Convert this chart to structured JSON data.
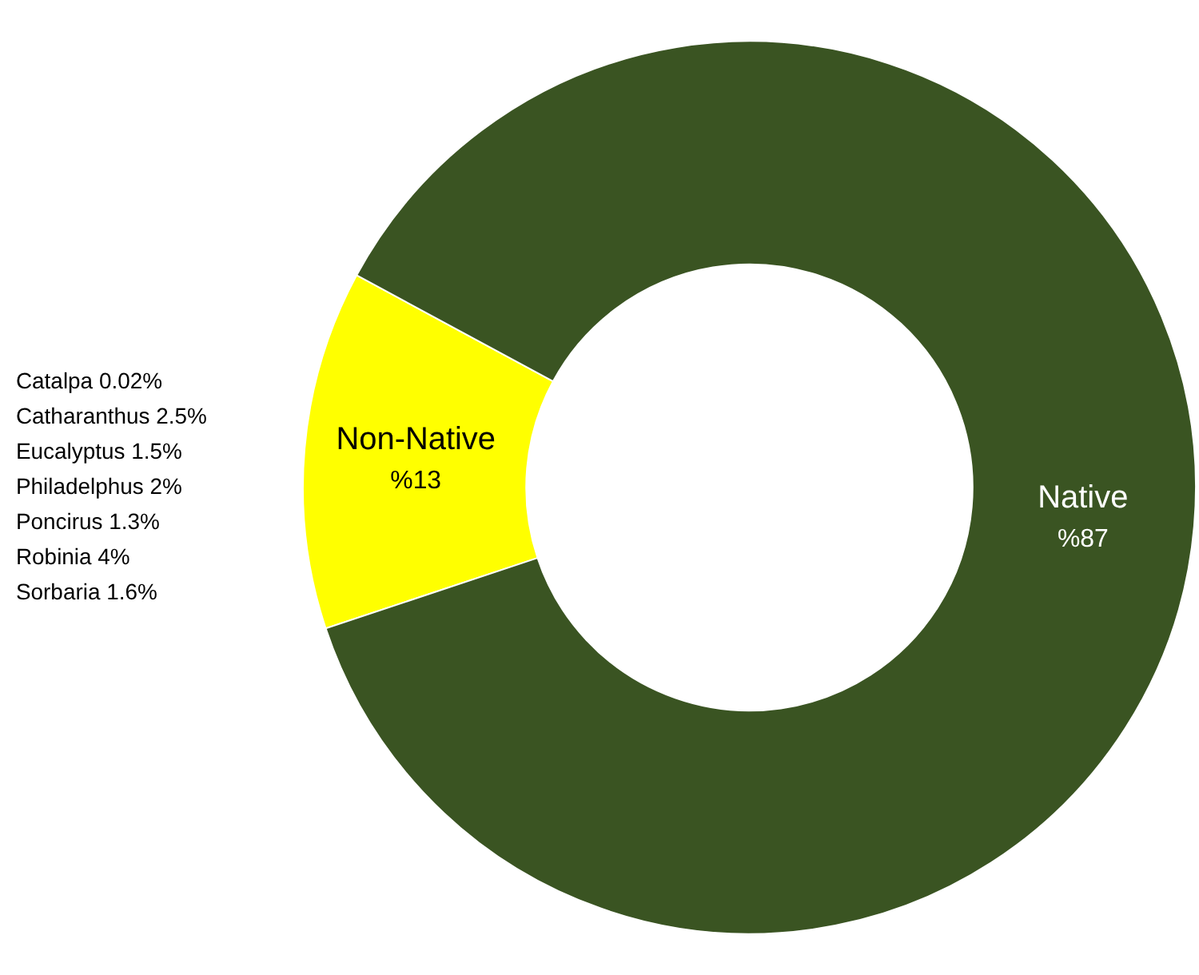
{
  "chart_data": {
    "type": "donut",
    "categories": [
      "Non-Native",
      "Native"
    ],
    "values": [
      13,
      87
    ],
    "colors": [
      "#ffff00",
      "#3a5422"
    ],
    "value_labels": [
      "%13",
      "%87"
    ],
    "annotations": [
      "Catalpa 0.02%",
      "Catharanthus 2.5%",
      "Eucalyptus 1.5%",
      "Philadelphus 2%",
      "Poncirus 1.3%",
      "Robinia 4%",
      "Sorbaria 1.6%"
    ]
  }
}
